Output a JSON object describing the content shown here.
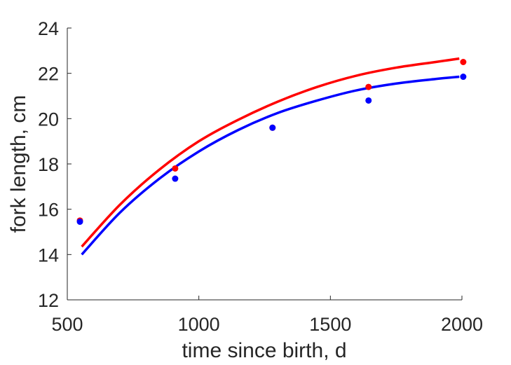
{
  "chart_data": {
    "type": "scatter",
    "title": "",
    "xlabel": "time since birth, d",
    "ylabel": "fork length, cm",
    "xlim": [
      500,
      2000
    ],
    "ylim": [
      12,
      24
    ],
    "xticks": [
      500,
      1000,
      1500,
      2000
    ],
    "yticks": [
      12,
      14,
      16,
      18,
      20,
      22,
      24
    ],
    "grid": false,
    "legend": "none",
    "series": [
      {
        "color": "#ff0000",
        "points": [
          [
            548,
            15.5
          ],
          [
            910,
            17.8
          ],
          [
            1280,
            19.6
          ],
          [
            1645,
            21.4
          ],
          [
            2005,
            22.5
          ]
        ],
        "curve": [
          [
            555,
            14.35
          ],
          [
            700,
            16.2
          ],
          [
            850,
            17.75
          ],
          [
            1000,
            19.0
          ],
          [
            1150,
            19.95
          ],
          [
            1300,
            20.75
          ],
          [
            1450,
            21.4
          ],
          [
            1600,
            21.9
          ],
          [
            1750,
            22.25
          ],
          [
            1900,
            22.5
          ],
          [
            1990,
            22.65
          ]
        ]
      },
      {
        "color": "#0000ff",
        "points": [
          [
            548,
            15.45
          ],
          [
            910,
            17.35
          ],
          [
            1280,
            19.6
          ],
          [
            1645,
            20.8
          ],
          [
            2005,
            21.85
          ]
        ],
        "curve": [
          [
            555,
            14.0
          ],
          [
            700,
            15.85
          ],
          [
            850,
            17.35
          ],
          [
            1000,
            18.55
          ],
          [
            1150,
            19.5
          ],
          [
            1300,
            20.25
          ],
          [
            1450,
            20.8
          ],
          [
            1600,
            21.25
          ],
          [
            1750,
            21.55
          ],
          [
            1900,
            21.75
          ],
          [
            1990,
            21.85
          ]
        ]
      }
    ]
  }
}
